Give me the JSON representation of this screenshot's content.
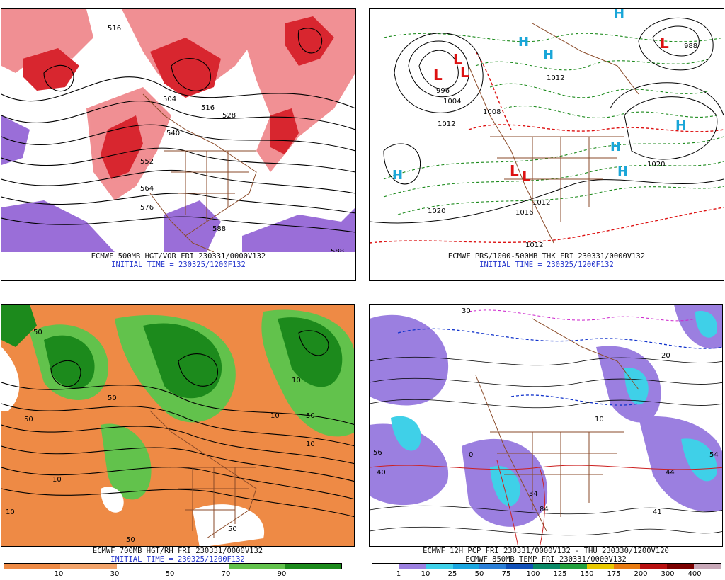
{
  "panels": {
    "tl": {
      "caption_line1": "ECMWF 500MB HGT/VOR FRI 230331/0000V132",
      "caption_line2": "INITIAL TIME = 230325/1200F132",
      "contour_labels": [
        "516",
        "504",
        "516",
        "528",
        "540",
        "552",
        "564",
        "576",
        "588",
        "588"
      ]
    },
    "tr": {
      "caption_line1": "ECMWF PRS/1000-500MB THK FRI 230331/0000V132",
      "caption_line2": "INITIAL TIME = 230325/1200F132",
      "pressure_labels": [
        "996",
        "1004",
        "1012",
        "1020",
        "1008",
        "1012",
        "1020",
        "1012",
        "1016",
        "1012",
        "988"
      ],
      "highs": [
        "H",
        "H",
        "H",
        "H",
        "H",
        "H",
        "H"
      ],
      "lows": [
        "L",
        "L",
        "L",
        "L",
        "L",
        "L"
      ]
    },
    "bl": {
      "caption_line1": "ECMWF 700MB HGT/RH FRI 230331/0000V132",
      "caption_line2": "INITIAL TIME = 230325/1200F132",
      "legend_labels": [
        "10",
        "30",
        "50",
        "70",
        "90"
      ],
      "contour_labels": [
        "50",
        "10",
        "50",
        "10",
        "50",
        "10",
        "50",
        "10",
        "50",
        "50",
        "10"
      ]
    },
    "br": {
      "caption_line1": "ECMWF 12H PCP FRI 230331/0000V132 - THU 230330/1200V120",
      "caption_line2": "ECMWF 850MB TEMP FRI 230331/0000V132",
      "legend_labels": [
        "1",
        "10",
        "25",
        "50",
        "75",
        "100",
        "125",
        "150",
        "175",
        "200",
        "300",
        "400"
      ],
      "point_labels": [
        "56",
        "44",
        "34",
        "54",
        "84",
        "41",
        "0",
        "10",
        "20",
        "30",
        "40"
      ]
    }
  },
  "colors": {
    "vort_red": "#d8262f",
    "vort_pink": "#f08a8e",
    "vort_purple": "#9a6ed8",
    "rh_orange": "#ee8a45",
    "rh_green": "#1c8a1c",
    "rh_lightgreen": "#62c24c",
    "pcp_purple": "#9b7fe0",
    "pcp_cyan": "#3fd0e8",
    "boundary_brown": "#8a4a28",
    "caption_blue": "#2233cc",
    "hl_blue": "#1aa6d8",
    "low_red": "#dd1111"
  },
  "legend_colors": {
    "bl": [
      "#ee8a45",
      "#f2a36a",
      "#ffffff",
      "#ffffff",
      "#62c24c",
      "#1c8a1c"
    ],
    "br": [
      "#ffffff",
      "#9b7fe0",
      "#3fd0e8",
      "#1aa6e0",
      "#2a7fd8",
      "#1050b8",
      "#0a8a68",
      "#21a03c",
      "#e8c800",
      "#e87a10",
      "#b81010",
      "#7a0000",
      "#c8a8b8"
    ]
  }
}
